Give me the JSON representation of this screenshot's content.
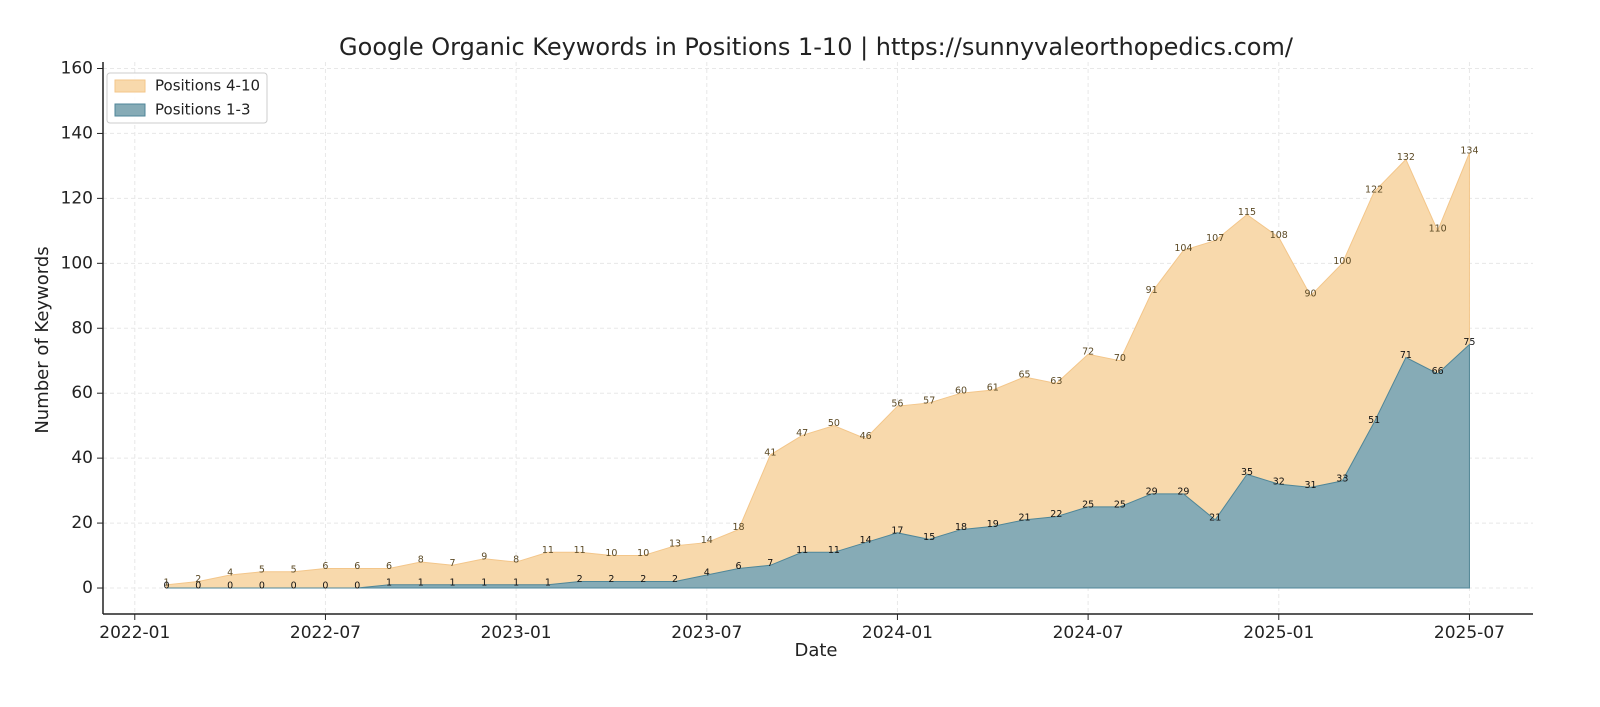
{
  "chart_data": {
    "type": "area",
    "title": "Google Organic Keywords in Positions 1-10 | https://sunnyvaleorthopedics.com/",
    "x_label": "Date",
    "y_label": "Number of Keywords",
    "x": [
      "2022-02",
      "2022-03",
      "2022-04",
      "2022-05",
      "2022-06",
      "2022-07",
      "2022-08",
      "2022-09",
      "2022-10",
      "2022-11",
      "2022-12",
      "2023-01",
      "2023-02",
      "2023-03",
      "2023-04",
      "2023-05",
      "2023-06",
      "2023-07",
      "2023-08",
      "2023-09",
      "2023-10",
      "2023-11",
      "2023-12",
      "2024-01",
      "2024-02",
      "2024-03",
      "2024-04",
      "2024-05",
      "2024-06",
      "2024-07",
      "2024-08",
      "2024-09",
      "2024-10",
      "2024-11",
      "2024-12",
      "2025-01",
      "2025-02",
      "2025-03",
      "2025-04",
      "2025-05",
      "2025-06",
      "2025-07"
    ],
    "series": [
      {
        "name": "Positions 4-10",
        "color": "#f8d9ac",
        "edge": "#f3c68a",
        "label_color": "#5c4a25",
        "values": [
          1,
          2,
          4,
          5,
          5,
          6,
          6,
          6,
          8,
          7,
          9,
          8,
          11,
          11,
          10,
          10,
          13,
          14,
          18,
          41,
          47,
          50,
          46,
          56,
          57,
          60,
          61,
          65,
          63,
          72,
          70,
          91,
          104,
          107,
          115,
          108,
          90,
          100,
          122,
          132,
          110,
          134
        ]
      },
      {
        "name": "Positions 1-3",
        "color": "#86abb6",
        "edge": "#4f8698",
        "label_color": "#111",
        "values": [
          0,
          0,
          0,
          0,
          0,
          0,
          0,
          1,
          1,
          1,
          1,
          1,
          1,
          2,
          2,
          2,
          2,
          4,
          6,
          7,
          11,
          11,
          14,
          17,
          15,
          18,
          19,
          21,
          22,
          25,
          25,
          29,
          29,
          21,
          35,
          32,
          31,
          33,
          51,
          71,
          66,
          75
        ]
      }
    ],
    "xlim": [
      "2021-12",
      "2025-09"
    ],
    "xticks": [
      "2022-01",
      "2022-07",
      "2023-01",
      "2023-07",
      "2024-01",
      "2024-07",
      "2025-01",
      "2025-07"
    ],
    "ylim": [
      -8,
      162
    ],
    "yticks": [
      0,
      20,
      40,
      60,
      80,
      100,
      120,
      140,
      160
    ],
    "grid": true,
    "legend": "upper left"
  }
}
